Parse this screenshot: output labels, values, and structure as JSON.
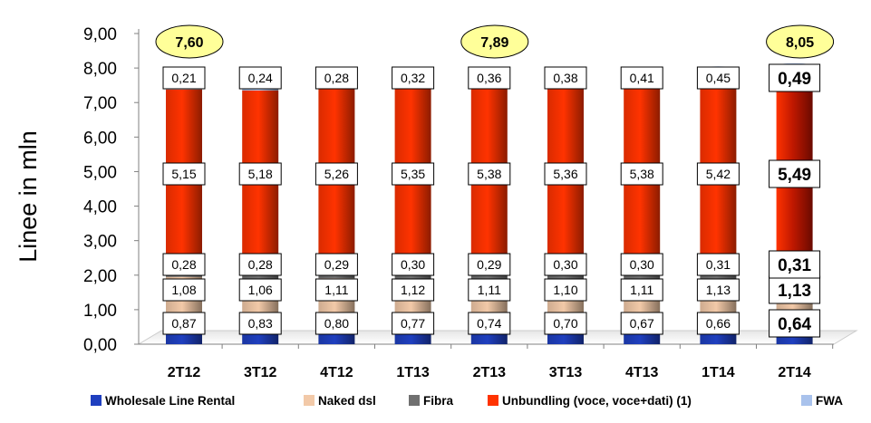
{
  "chart_data": {
    "type": "bar",
    "stacked": true,
    "title": "",
    "xlabel": "",
    "ylabel": "Linee in mln",
    "ylim": [
      0,
      9
    ],
    "ytick_step": 1,
    "ytick_labels": [
      "0,00",
      "1,00",
      "2,00",
      "3,00",
      "4,00",
      "5,00",
      "6,00",
      "7,00",
      "8,00",
      "9,00"
    ],
    "categories": [
      "2T12",
      "3T12",
      "4T12",
      "1T13",
      "2T13",
      "3T13",
      "4T13",
      "1T14",
      "2T14"
    ],
    "series": [
      {
        "name": "Wholesale Line Rental",
        "color": "#1f3fbf",
        "values": [
          0.87,
          0.83,
          0.8,
          0.77,
          0.74,
          0.7,
          0.67,
          0.66,
          0.64
        ],
        "labels": [
          "0,87",
          "0,83",
          "0,80",
          "0,77",
          "0,74",
          "0,70",
          "0,67",
          "0,66",
          "0,64"
        ]
      },
      {
        "name": "Naked dsl",
        "color": "#f2c9a8",
        "values": [
          1.08,
          1.06,
          1.11,
          1.12,
          1.11,
          1.1,
          1.11,
          1.13,
          1.13
        ],
        "labels": [
          "1,08",
          "1,06",
          "1,11",
          "1,12",
          "1,11",
          "1,10",
          "1,11",
          "1,13",
          "1,13"
        ]
      },
      {
        "name": "Fibra",
        "color": "#707070",
        "values": [
          0.28,
          0.28,
          0.29,
          0.3,
          0.29,
          0.3,
          0.3,
          0.31,
          0.31
        ],
        "labels": [
          "0,28",
          "0,28",
          "0,29",
          "0,30",
          "0,29",
          "0,30",
          "0,30",
          "0,31",
          "0,31"
        ]
      },
      {
        "name": "Unbundling (voce, voce+dati) (1)",
        "color": "#ff3300",
        "values": [
          5.15,
          5.18,
          5.26,
          5.35,
          5.38,
          5.36,
          5.38,
          5.42,
          5.49
        ],
        "labels": [
          "5,15",
          "5,18",
          "5,26",
          "5,35",
          "5,38",
          "5,36",
          "5,38",
          "5,42",
          "5,49"
        ]
      },
      {
        "name": "FWA",
        "color": "#a9c2ec",
        "values": [
          0.21,
          0.24,
          0.28,
          0.32,
          0.36,
          0.38,
          0.41,
          0.45,
          0.49
        ],
        "labels": [
          "0,21",
          "0,24",
          "0,28",
          "0,32",
          "0,36",
          "0,38",
          "0,41",
          "0,45",
          "0,49"
        ]
      }
    ],
    "totals": [
      {
        "category": "2T12",
        "value": 7.6,
        "label": "7,60"
      },
      {
        "category": "2T13",
        "value": 7.89,
        "label": "7,89"
      },
      {
        "category": "2T14",
        "value": 8.05,
        "label": "8,05"
      }
    ],
    "highlight_category": "2T14",
    "legend_position": "bottom",
    "grid": false,
    "colors": {
      "total_bubble_fill": "#ffff99",
      "label_border": "#000000",
      "axis": "#808080"
    }
  }
}
